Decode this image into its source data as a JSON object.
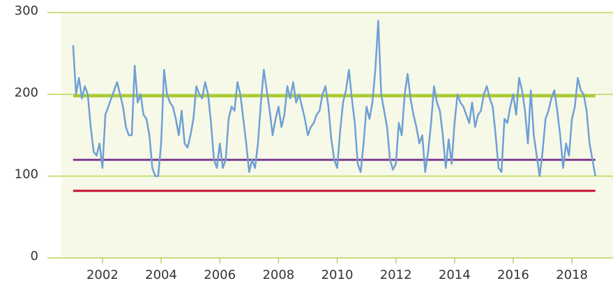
{
  "chart_data": {
    "type": "line",
    "x": [
      2001.0,
      2001.1,
      2001.2,
      2001.3,
      2001.4,
      2001.5,
      2001.6,
      2001.7,
      2001.8,
      2001.9,
      2002.0,
      2002.1,
      2002.2,
      2002.3,
      2002.4,
      2002.5,
      2002.6,
      2002.7,
      2002.8,
      2002.9,
      2003.0,
      2003.1,
      2003.2,
      2003.3,
      2003.4,
      2003.5,
      2003.6,
      2003.7,
      2003.8,
      2003.9,
      2004.0,
      2004.1,
      2004.2,
      2004.3,
      2004.4,
      2004.5,
      2004.6,
      2004.7,
      2004.8,
      2004.9,
      2005.0,
      2005.1,
      2005.2,
      2005.3,
      2005.4,
      2005.5,
      2005.6,
      2005.7,
      2005.8,
      2005.9,
      2006.0,
      2006.1,
      2006.2,
      2006.3,
      2006.4,
      2006.5,
      2006.6,
      2006.7,
      2006.8,
      2006.9,
      2007.0,
      2007.1,
      2007.2,
      2007.3,
      2007.4,
      2007.5,
      2007.6,
      2007.7,
      2007.8,
      2007.9,
      2008.0,
      2008.1,
      2008.2,
      2008.3,
      2008.4,
      2008.5,
      2008.6,
      2008.7,
      2008.8,
      2008.9,
      2009.0,
      2009.1,
      2009.2,
      2009.3,
      2009.4,
      2009.5,
      2009.6,
      2009.7,
      2009.8,
      2009.9,
      2010.0,
      2010.1,
      2010.2,
      2010.3,
      2010.4,
      2010.5,
      2010.6,
      2010.7,
      2010.8,
      2010.9,
      2011.0,
      2011.1,
      2011.2,
      2011.3,
      2011.4,
      2011.5,
      2011.6,
      2011.7,
      2011.8,
      2011.9,
      2012.0,
      2012.1,
      2012.2,
      2012.3,
      2012.4,
      2012.5,
      2012.6,
      2012.7,
      2012.8,
      2012.9,
      2013.0,
      2013.1,
      2013.2,
      2013.3,
      2013.4,
      2013.5,
      2013.6,
      2013.7,
      2013.8,
      2013.9,
      2014.0,
      2014.1,
      2014.2,
      2014.3,
      2014.4,
      2014.5,
      2014.6,
      2014.7,
      2014.8,
      2014.9,
      2015.0,
      2015.1,
      2015.2,
      2015.3,
      2015.4,
      2015.5,
      2015.6,
      2015.7,
      2015.8,
      2015.9,
      2016.0,
      2016.1,
      2016.2,
      2016.3,
      2016.4,
      2016.5,
      2016.6,
      2016.7,
      2016.8,
      2016.9,
      2017.0,
      2017.1,
      2017.2,
      2017.3,
      2017.4,
      2017.5,
      2017.6,
      2017.7,
      2017.8,
      2017.9,
      2018.0,
      2018.1,
      2018.2,
      2018.3,
      2018.4,
      2018.5,
      2018.6,
      2018.7,
      2018.8
    ],
    "series": [
      {
        "color": "#6f9fd6",
        "values": [
          260,
          200,
          220,
          195,
          210,
          200,
          160,
          130,
          125,
          140,
          110,
          175,
          185,
          195,
          205,
          215,
          200,
          185,
          160,
          150,
          150,
          235,
          190,
          200,
          175,
          170,
          150,
          110,
          100,
          100,
          140,
          230,
          200,
          190,
          185,
          170,
          150,
          180,
          140,
          135,
          150,
          170,
          210,
          200,
          195,
          215,
          200,
          165,
          120,
          110,
          140,
          110,
          120,
          170,
          185,
          180,
          215,
          200,
          170,
          140,
          105,
          120,
          110,
          140,
          190,
          230,
          205,
          180,
          150,
          170,
          185,
          160,
          175,
          210,
          195,
          215,
          190,
          200,
          185,
          170,
          150,
          160,
          165,
          175,
          180,
          200,
          210,
          185,
          145,
          120,
          110,
          155,
          190,
          205,
          230,
          195,
          165,
          115,
          105,
          140,
          185,
          170,
          190,
          230,
          290,
          200,
          180,
          160,
          120,
          108,
          115,
          165,
          150,
          200,
          225,
          195,
          175,
          160,
          140,
          150,
          105,
          130,
          165,
          210,
          190,
          180,
          150,
          110,
          145,
          115,
          165,
          200,
          190,
          185,
          175,
          165,
          190,
          160,
          175,
          180,
          200,
          210,
          195,
          185,
          150,
          110,
          105,
          170,
          165,
          185,
          200,
          175,
          220,
          205,
          180,
          140,
          205,
          150,
          125,
          100,
          130,
          170,
          180,
          195,
          205,
          180,
          150,
          110,
          140,
          125,
          170,
          185,
          220,
          205,
          200,
          180,
          140,
          120,
          100
        ]
      }
    ],
    "reference_lines": [
      {
        "value": 198,
        "color": "#a9cc2e"
      },
      {
        "value": 120,
        "color": "#7d3c8f"
      },
      {
        "value": 82,
        "color": "#c8102e"
      }
    ],
    "xlim": [
      2000.6,
      2019.4
    ],
    "xticks": [
      2002,
      2004,
      2006,
      2008,
      2010,
      2012,
      2014,
      2016,
      2018
    ],
    "ylim": [
      0,
      300
    ],
    "yticks": [
      0,
      100,
      200,
      300
    ],
    "grid": true
  }
}
